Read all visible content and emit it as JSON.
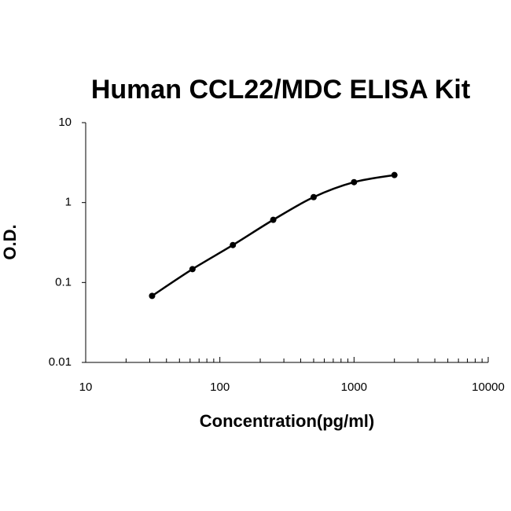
{
  "chart_data": {
    "type": "scatter",
    "title": "Human CCL22/MDC ELISA Kit",
    "x_label": "Concentration(pg/ml)",
    "y_label": "O.D.",
    "x": [
      31.25,
      62.5,
      125,
      250,
      500,
      1000,
      2000
    ],
    "values": [
      0.068,
      0.147,
      0.294,
      0.608,
      1.17,
      1.8,
      2.21
    ],
    "color": "#000000",
    "fit_line": true,
    "x_log": true,
    "y_log": true,
    "xlim": [
      10,
      10000
    ],
    "ylim": [
      0.01,
      10
    ],
    "xticks": [
      10,
      100,
      1000,
      10000
    ],
    "yticks": [
      0.01,
      0.1,
      1,
      10
    ]
  }
}
